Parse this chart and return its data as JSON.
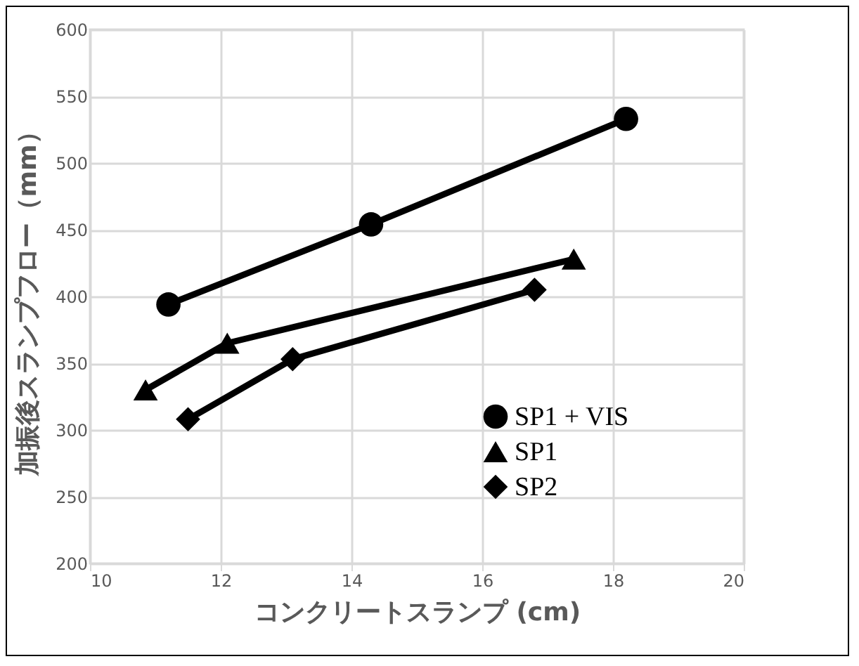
{
  "chart_data": {
    "type": "line",
    "xlabel": "コンクリートスランプ (cm)",
    "ylabel": "加振後スランプフロー（mm）",
    "xlim": [
      10,
      20
    ],
    "xticks": [
      10,
      12,
      14,
      16,
      18,
      20
    ],
    "ylim": [
      200,
      600
    ],
    "yticks": [
      200,
      250,
      300,
      350,
      400,
      450,
      500,
      550,
      600
    ],
    "grid": true,
    "legend": "bottom right",
    "series": [
      {
        "name": "SP1 + VIS",
        "color": "#000000",
        "marker": "circle",
        "x": [
          11.2,
          14.3,
          18.2
        ],
        "values": [
          394,
          454,
          533
        ]
      },
      {
        "name": "SP1",
        "color": "#000000",
        "marker": "triangle",
        "x": [
          10.85,
          12.1,
          17.4
        ],
        "values": [
          330,
          365,
          428
        ]
      },
      {
        "name": "SP2",
        "color": "#000000",
        "marker": "diamond",
        "x": [
          11.5,
          13.1,
          16.8
        ],
        "values": [
          308,
          353,
          405
        ]
      }
    ]
  }
}
